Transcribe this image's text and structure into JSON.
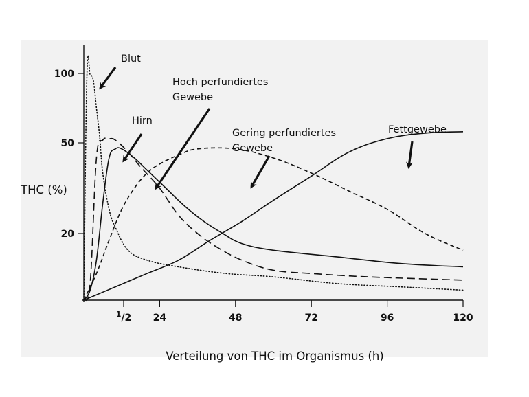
{
  "chart_data": {
    "type": "line",
    "title": "",
    "xlabel": "Verteilung von THC im Organismus (h)",
    "ylabel": "THC (%)",
    "x_ticks": [
      {
        "value": 0.5,
        "label": "1/2"
      },
      {
        "value": 24,
        "label": "24"
      },
      {
        "value": 48,
        "label": "48"
      },
      {
        "value": 72,
        "label": "72"
      },
      {
        "value": 96,
        "label": "96"
      },
      {
        "value": 120,
        "label": "120"
      }
    ],
    "y_ticks": [
      {
        "value": 100,
        "label": "100"
      },
      {
        "value": 50,
        "label": "50"
      },
      {
        "value": 20,
        "label": "20"
      }
    ],
    "xlim": [
      0,
      120
    ],
    "ylim": [
      0,
      110
    ],
    "grid": false,
    "series": [
      {
        "name": "Blut",
        "style": "dotted",
        "points": [
          [
            0,
            0
          ],
          [
            1,
            100
          ],
          [
            2,
            99
          ],
          [
            3,
            95
          ],
          [
            4,
            75
          ],
          [
            5,
            55
          ],
          [
            6,
            40
          ],
          [
            8,
            28
          ],
          [
            10,
            22
          ],
          [
            14,
            15
          ],
          [
            20,
            12
          ],
          [
            30,
            10
          ],
          [
            45,
            8
          ],
          [
            60,
            7
          ],
          [
            80,
            5
          ],
          [
            100,
            4
          ],
          [
            120,
            3
          ]
        ]
      },
      {
        "name": "Hirn",
        "style": "dashed",
        "points": [
          [
            0,
            0
          ],
          [
            2,
            5
          ],
          [
            4,
            45
          ],
          [
            6,
            52
          ],
          [
            8,
            53
          ],
          [
            10,
            52
          ],
          [
            14,
            47
          ],
          [
            18,
            42
          ],
          [
            24,
            35
          ],
          [
            30,
            26
          ],
          [
            36,
            20
          ],
          [
            42,
            16
          ],
          [
            50,
            12
          ],
          [
            60,
            9
          ],
          [
            72,
            8
          ],
          [
            90,
            7
          ],
          [
            120,
            6
          ]
        ]
      },
      {
        "name": "Hoch perfundiertes Gewebe",
        "style": "solid",
        "points": [
          [
            0,
            0
          ],
          [
            2,
            3
          ],
          [
            4,
            12
          ],
          [
            6,
            30
          ],
          [
            8,
            45
          ],
          [
            10,
            48
          ],
          [
            12,
            48
          ],
          [
            16,
            45
          ],
          [
            20,
            41
          ],
          [
            26,
            35
          ],
          [
            32,
            29
          ],
          [
            38,
            24
          ],
          [
            44,
            20
          ],
          [
            50,
            17
          ],
          [
            60,
            15
          ],
          [
            80,
            13
          ],
          [
            100,
            11
          ],
          [
            120,
            10
          ]
        ]
      },
      {
        "name": "Gering perfundiertes Gewebe",
        "style": "short-dashed",
        "points": [
          [
            0,
            0
          ],
          [
            4,
            8
          ],
          [
            8,
            18
          ],
          [
            12,
            28
          ],
          [
            16,
            35
          ],
          [
            20,
            40
          ],
          [
            24,
            43
          ],
          [
            30,
            46
          ],
          [
            36,
            48
          ],
          [
            48,
            48
          ],
          [
            60,
            45
          ],
          [
            72,
            40
          ],
          [
            84,
            34
          ],
          [
            96,
            28
          ],
          [
            108,
            20
          ],
          [
            120,
            15
          ]
        ]
      },
      {
        "name": "Fettgewebe",
        "style": "solid-thin",
        "points": [
          [
            0,
            0
          ],
          [
            10,
            4
          ],
          [
            20,
            8
          ],
          [
            30,
            12
          ],
          [
            40,
            18
          ],
          [
            50,
            24
          ],
          [
            60,
            31
          ],
          [
            72,
            39
          ],
          [
            84,
            47
          ],
          [
            96,
            53
          ],
          [
            108,
            57
          ],
          [
            120,
            58
          ]
        ]
      }
    ],
    "annotations": [
      {
        "text": "Blut",
        "target_series": "Blut"
      },
      {
        "text": "Hirn",
        "target_series": "Hirn"
      },
      {
        "text_lines": [
          "Hoch perfundiertes",
          "Gewebe"
        ],
        "target_series": "Hoch perfundiertes Gewebe"
      },
      {
        "text_lines": [
          "Gering perfundiertes",
          "Gewebe"
        ],
        "target_series": "Gering perfundiertes Gewebe"
      },
      {
        "text": "Fettgewebe",
        "target_series": "Fettgewebe"
      }
    ]
  }
}
